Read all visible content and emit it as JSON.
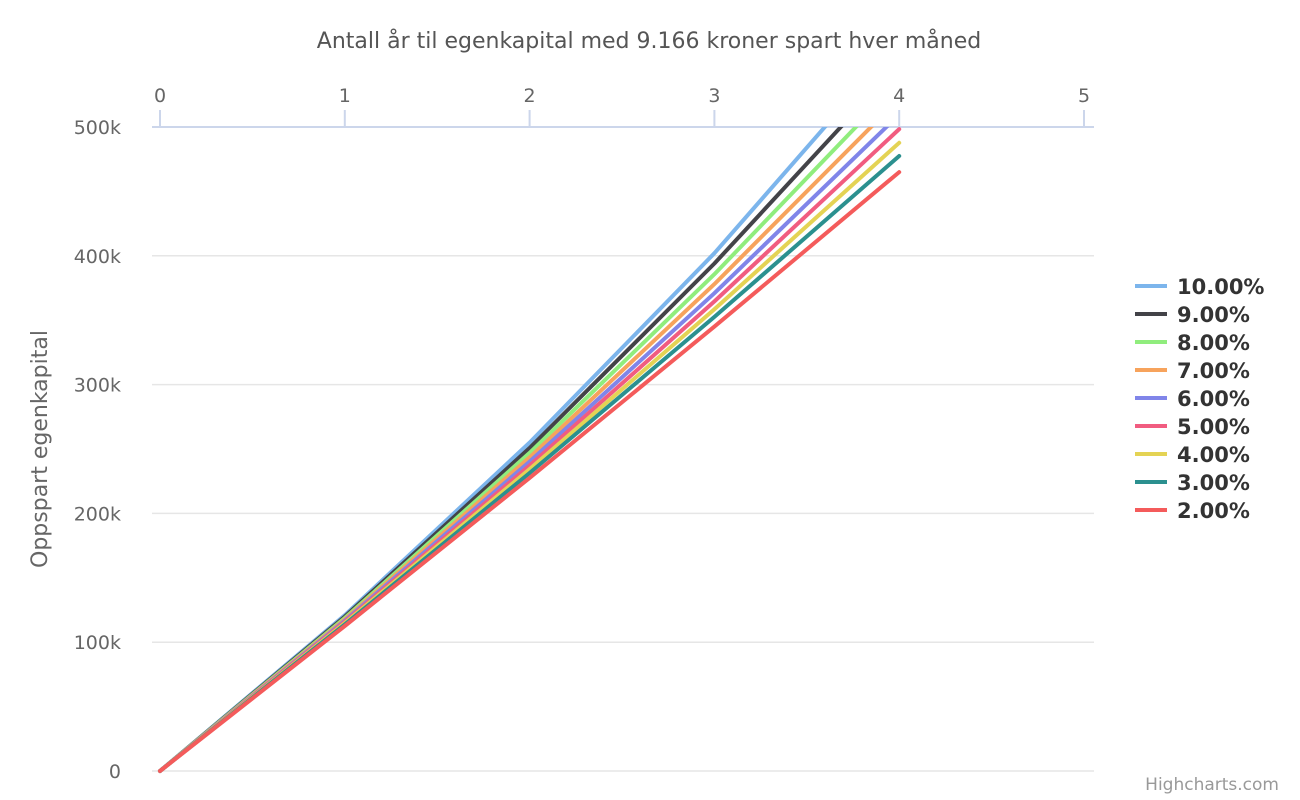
{
  "chart_data": {
    "type": "line",
    "title": "Antall år til egenkapital med 9.166 kroner spart hver måned",
    "xlabel": "",
    "ylabel": "Oppspart egenkapital",
    "x_axis_position": "top",
    "x_ticks": [
      "0",
      "1",
      "2",
      "3",
      "4",
      "5"
    ],
    "y_ticks": [
      "0",
      "100k",
      "200k",
      "300k",
      "400k",
      "500k"
    ],
    "xlim": [
      0,
      5
    ],
    "ylim": [
      0,
      500000
    ],
    "grid": "horizontal",
    "legend_position": "right",
    "x": [
      0,
      1,
      2,
      3,
      4
    ],
    "series": [
      {
        "name": "10.00%",
        "color": "#7cb5ec",
        "values": [
          0,
          121000,
          255000,
          402000,
          566000
        ],
        "end_x": 3.62
      },
      {
        "name": "9.00%",
        "color": "#434348",
        "values": [
          0,
          119900,
          250800,
          394000,
          549000
        ],
        "end_x": 3.71
      },
      {
        "name": "8.00%",
        "color": "#90ed7d",
        "values": [
          0,
          118800,
          247000,
          385700,
          535000
        ],
        "end_x": 3.78
      },
      {
        "name": "7.00%",
        "color": "#f7a35c",
        "values": [
          0,
          117700,
          243500,
          378000,
          522000
        ],
        "end_x": 3.85
      },
      {
        "name": "6.00%",
        "color": "#8085e9",
        "values": [
          0,
          116700,
          240200,
          371000,
          509600
        ],
        "end_x": 3.93
      },
      {
        "name": "5.00%",
        "color": "#f15c80",
        "values": [
          0,
          115800,
          237200,
          364600,
          498400
        ],
        "end_x": 4.02
      },
      {
        "name": "4.00%",
        "color": "#e4d354",
        "values": [
          0,
          114800,
          234300,
          358500,
          487700
        ],
        "end_x": 4.11
      },
      {
        "name": "3.00%",
        "color": "#2b908f",
        "values": [
          0,
          113800,
          231400,
          352600,
          477500
        ],
        "end_x": 4.21
      },
      {
        "name": "2.00%",
        "color": "#f45b5b",
        "values": [
          0,
          112600,
          227600,
          345000,
          465000
        ],
        "end_x": 4.32
      }
    ],
    "credits": "Highcharts.com"
  }
}
